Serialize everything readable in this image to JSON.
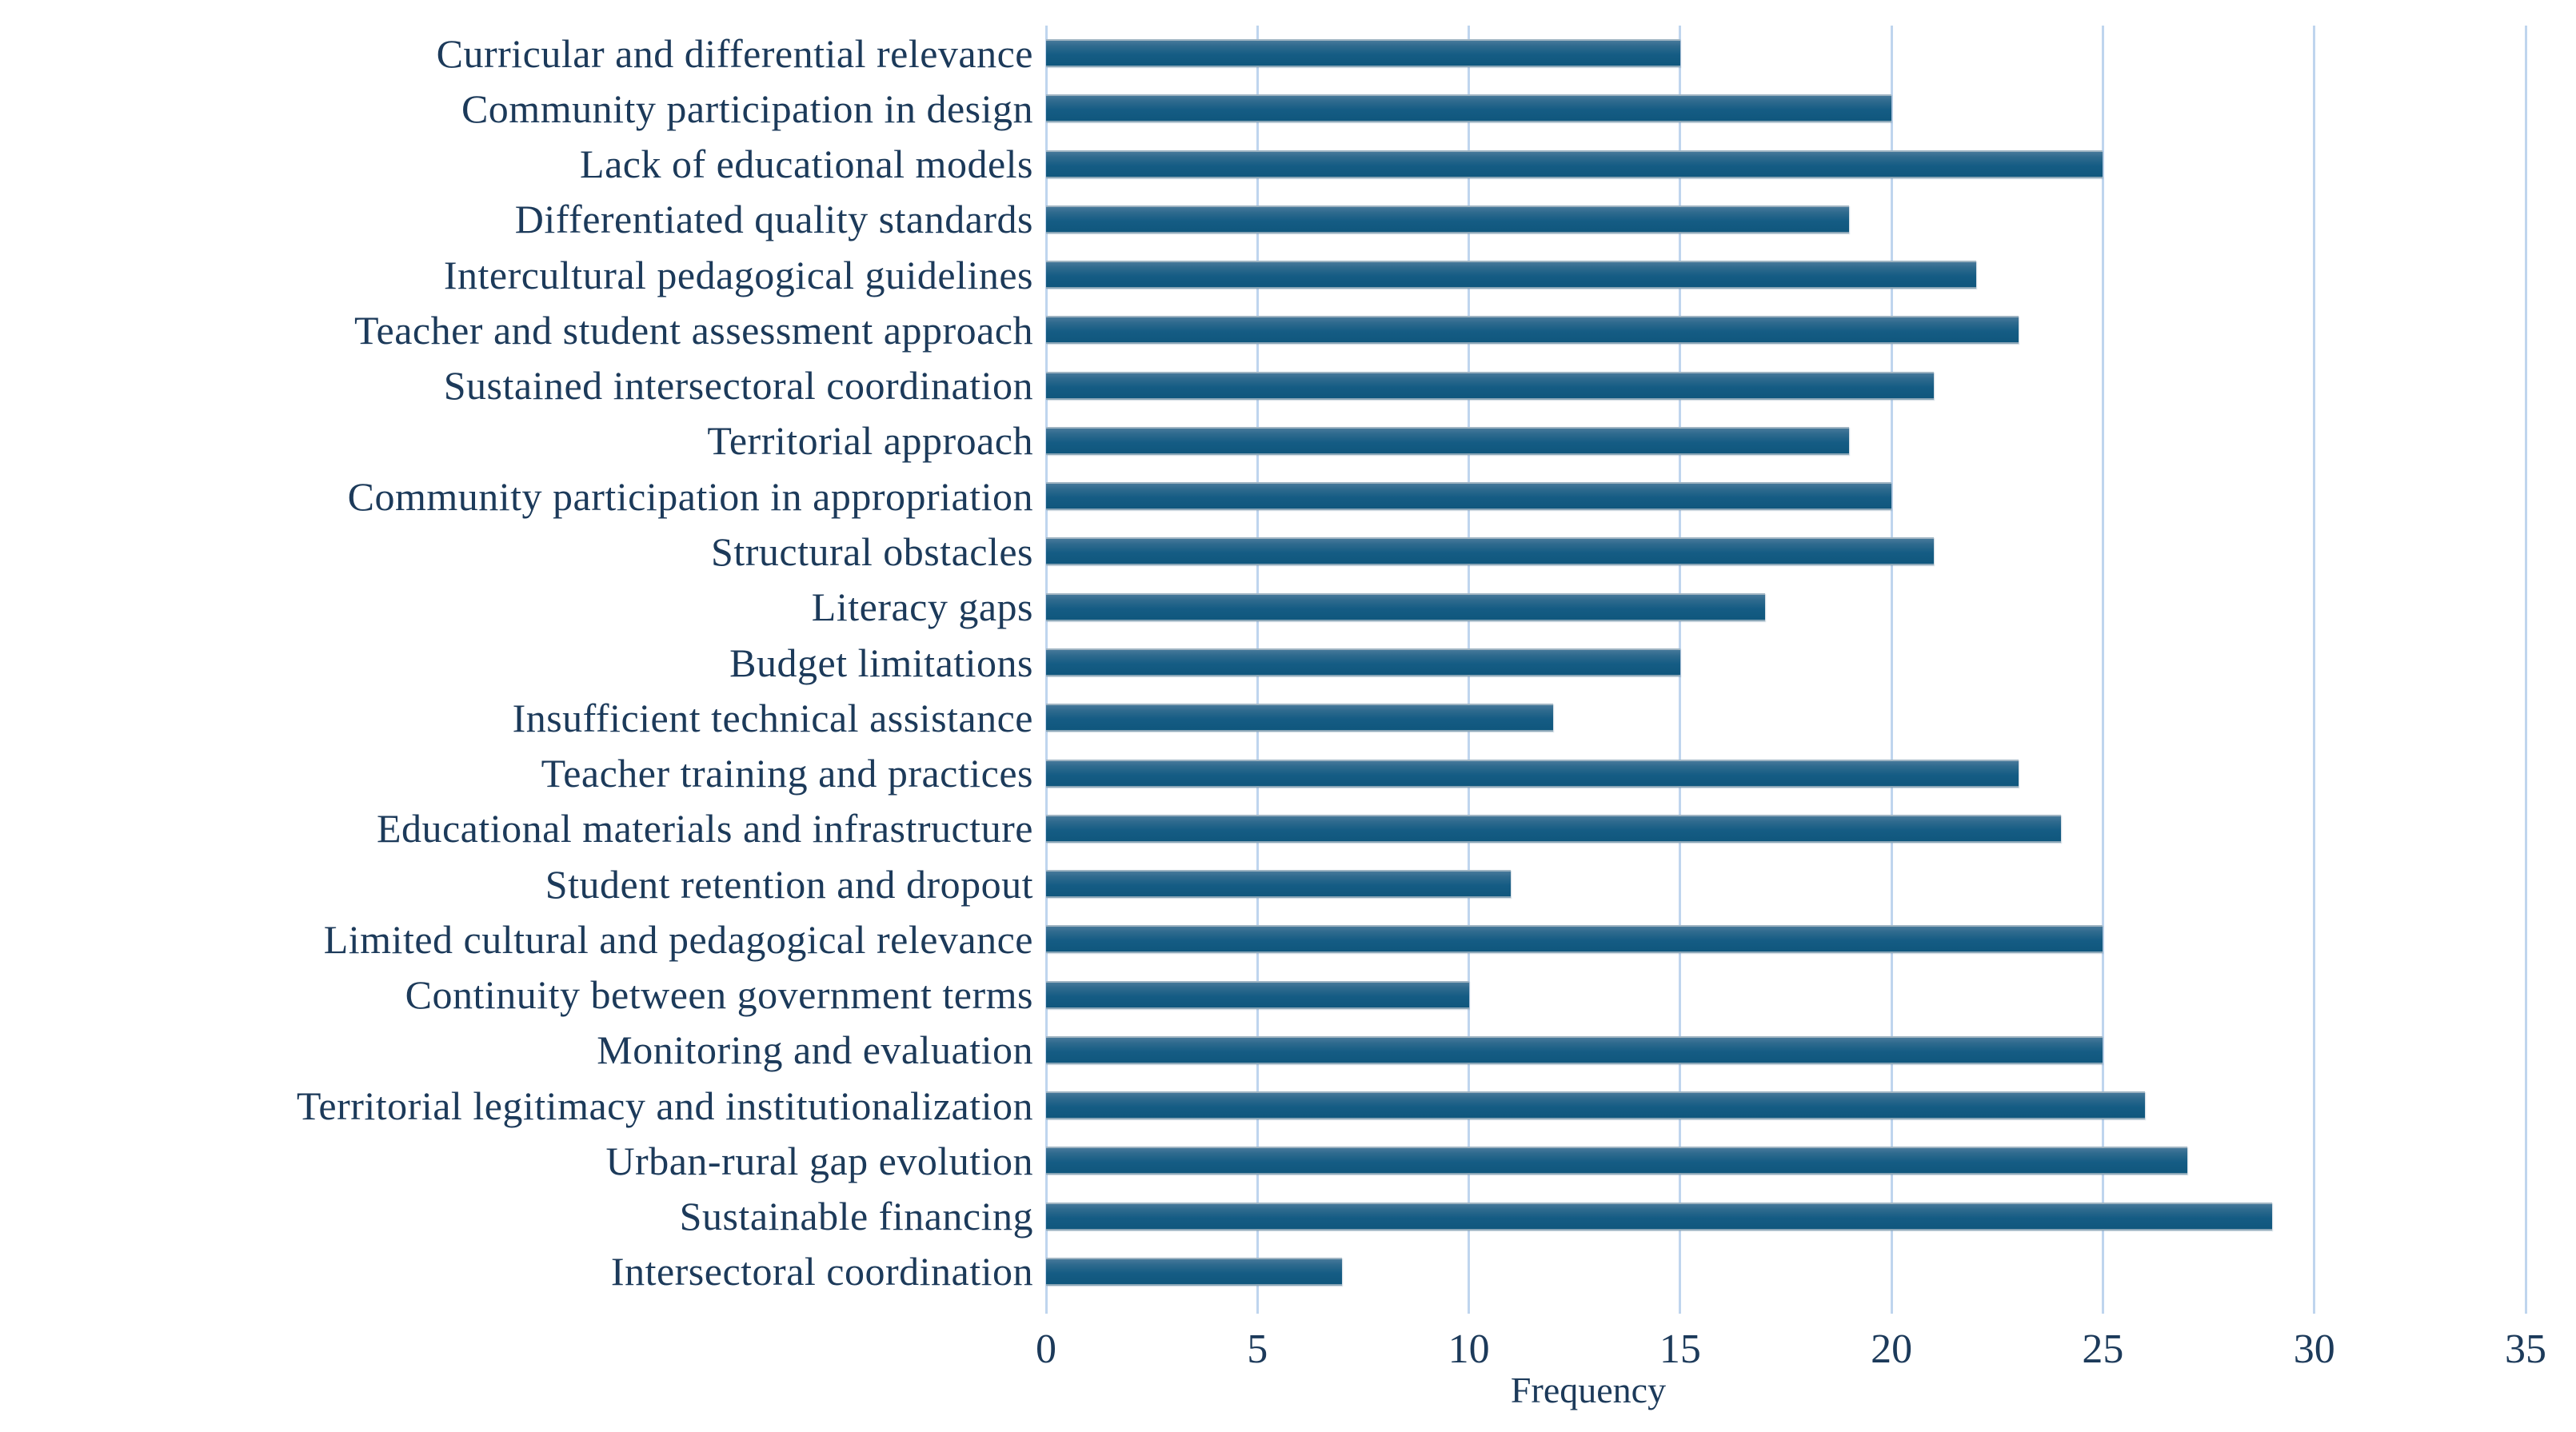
{
  "chart_data": {
    "type": "bar",
    "orientation": "horizontal",
    "title": "",
    "xlabel": "Frequency",
    "ylabel": "",
    "categories": [
      "Curricular and differential relevance",
      "Community participation in design",
      "Lack of educational models",
      "Differentiated quality standards",
      "Intercultural pedagogical guidelines",
      "Teacher and student assessment approach",
      "Sustained intersectoral coordination",
      "Territorial approach",
      "Community participation in appropriation",
      "Structural obstacles",
      "Literacy gaps",
      "Budget limitations",
      "Insufficient technical assistance",
      "Teacher training and practices",
      "Educational materials and infrastructure",
      "Student retention and dropout",
      "Limited cultural and pedagogical relevance",
      "Continuity between government terms",
      "Monitoring and evaluation",
      "Territorial legitimacy and institutionalization",
      "Urban-rural gap evolution",
      "Sustainable financing",
      "Intersectoral coordination"
    ],
    "values": [
      15,
      20,
      25,
      19,
      22,
      23,
      21,
      19,
      20,
      21,
      17,
      15,
      12,
      23,
      24,
      11,
      25,
      10,
      25,
      26,
      27,
      29,
      7
    ],
    "xlim": [
      0,
      35
    ],
    "xticks": [
      0,
      5,
      10,
      15,
      20,
      25,
      30,
      35
    ],
    "grid": true,
    "legend": false,
    "colors": {
      "bar_dark": "#0f567c",
      "bar_light": "#4d7c9d",
      "grid": "#bfd5ee",
      "text": "#1c3a5a"
    }
  }
}
